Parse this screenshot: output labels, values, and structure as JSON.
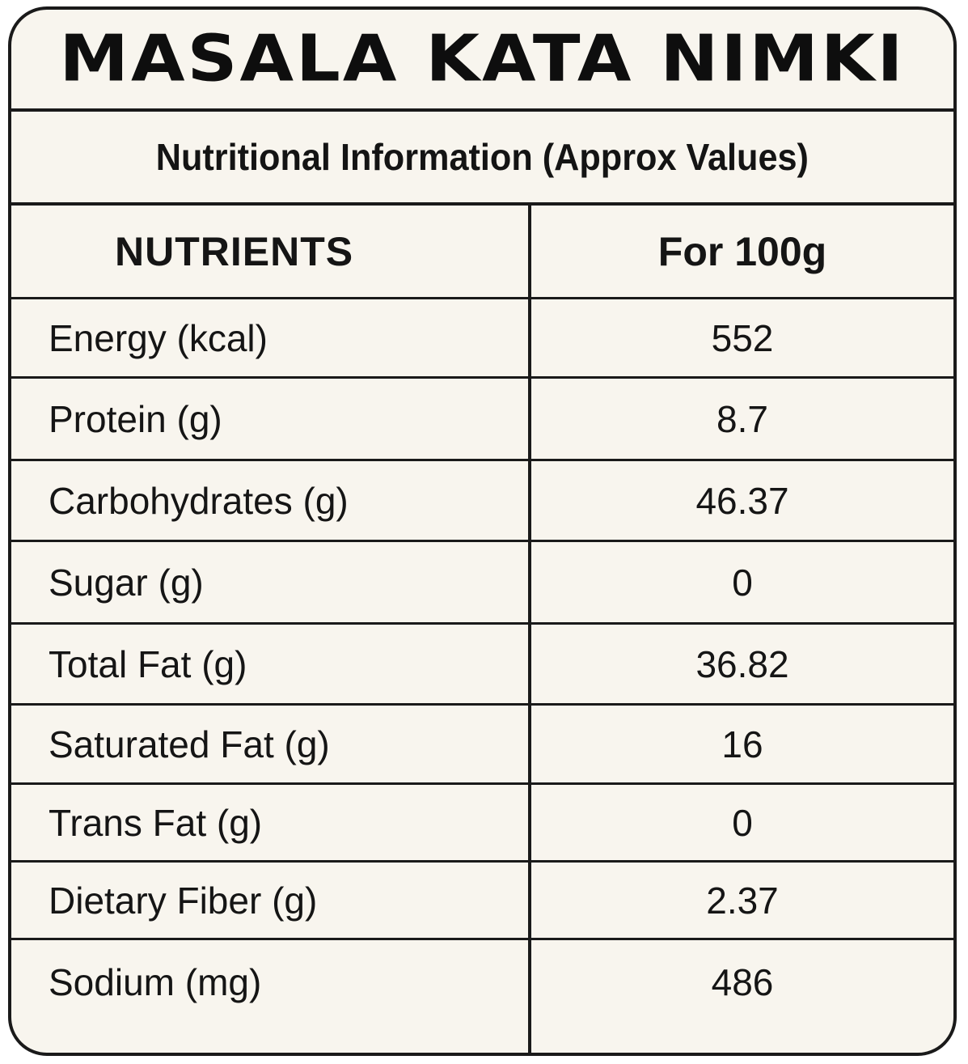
{
  "label": {
    "title": "MASALA KATA NIMKI",
    "subtitle": "Nutritional Information (Approx Values)",
    "header": {
      "nutrients": "NUTRIENTS",
      "per_amount": "For 100g"
    },
    "rows": [
      {
        "nutrient": "Energy (kcal)",
        "value": "552"
      },
      {
        "nutrient": "Protein (g)",
        "value": "8.7"
      },
      {
        "nutrient": "Carbohydrates (g)",
        "value": "46.37"
      },
      {
        "nutrient": "Sugar (g)",
        "value": "0"
      },
      {
        "nutrient": "Total Fat (g)",
        "value": "36.82"
      },
      {
        "nutrient": "Saturated Fat (g)",
        "value": "16"
      },
      {
        "nutrient": "Trans Fat (g)",
        "value": "0"
      },
      {
        "nutrient": "Dietary Fiber (g)",
        "value": "2.37"
      },
      {
        "nutrient": "Sodium (mg)",
        "value": "486"
      }
    ]
  }
}
